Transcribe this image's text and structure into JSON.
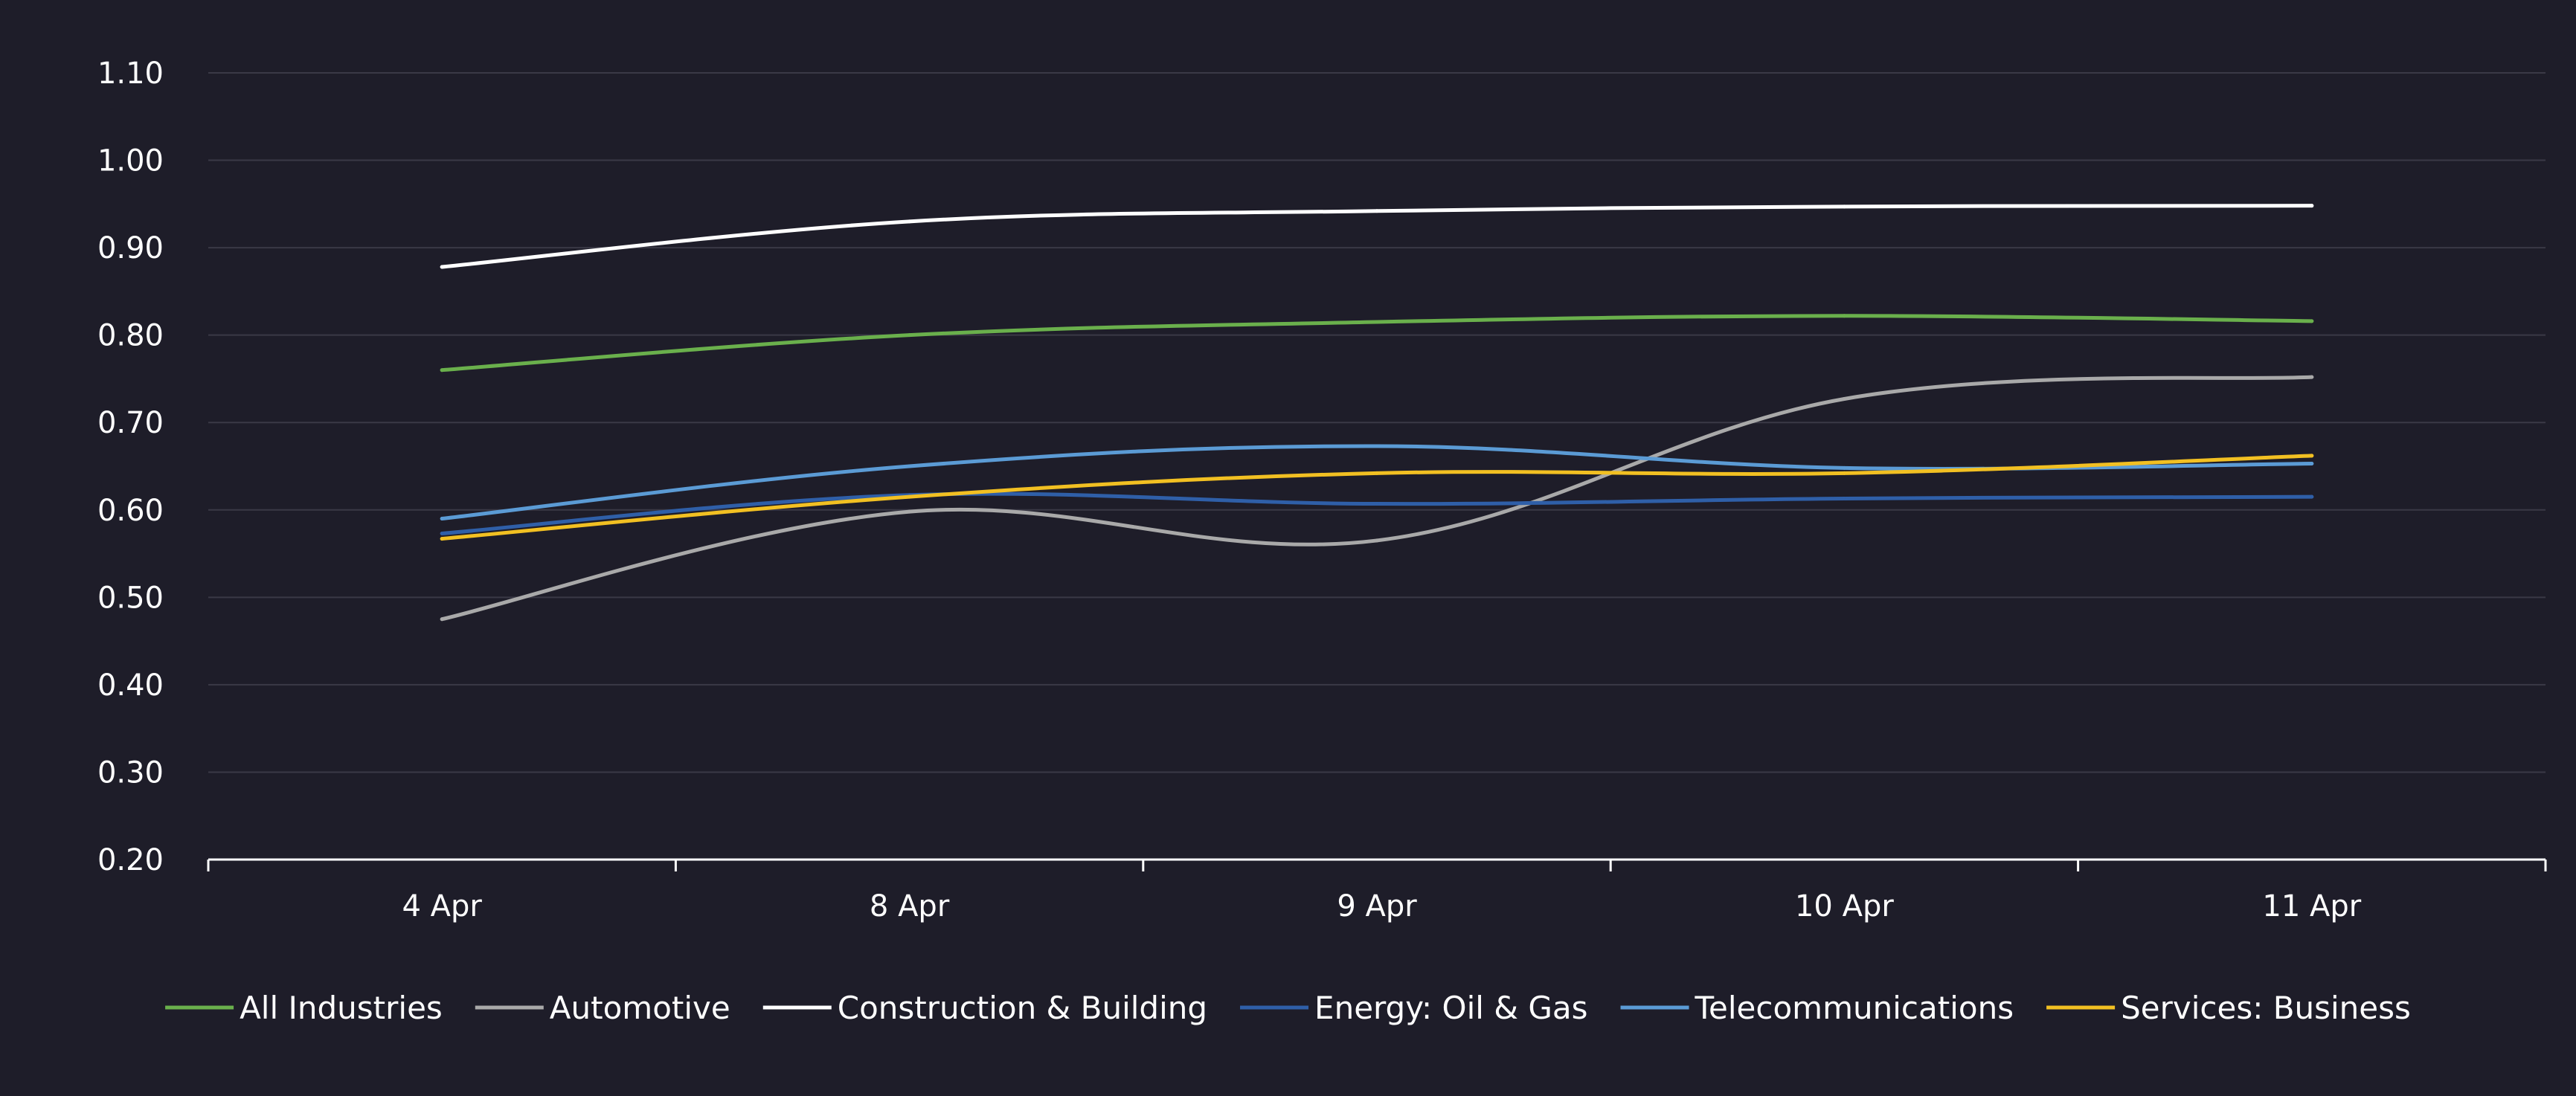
{
  "chart_data": {
    "type": "line",
    "title": "",
    "xlabel": "",
    "ylabel": "",
    "categories": [
      "4 Apr",
      "8 Apr",
      "9 Apr",
      "10 Apr",
      "11 Apr"
    ],
    "ylim": [
      0.2,
      1.1
    ],
    "yticks": [
      "0.20",
      "0.30",
      "0.40",
      "0.50",
      "0.60",
      "0.70",
      "0.80",
      "0.90",
      "1.00",
      "1.10"
    ],
    "grid": true,
    "legend_position": "bottom",
    "series": [
      {
        "name": "All Industries",
        "color": "#6ab04c",
        "values": [
          0.76,
          0.8,
          0.815,
          0.822,
          0.816
        ]
      },
      {
        "name": "Automotive",
        "color": "#a9a9a9",
        "values": [
          0.475,
          0.598,
          0.565,
          0.727,
          0.752
        ]
      },
      {
        "name": "Construction & Building",
        "color": "#ffffff",
        "values": [
          0.878,
          0.93,
          0.942,
          0.947,
          0.948
        ]
      },
      {
        "name": "Energy: Oil & Gas",
        "color": "#2f5fa8",
        "values": [
          0.573,
          0.617,
          0.607,
          0.613,
          0.615
        ]
      },
      {
        "name": "Telecommunications",
        "color": "#5b9bd5",
        "values": [
          0.59,
          0.65,
          0.673,
          0.648,
          0.653
        ]
      },
      {
        "name": "Services: Business",
        "color": "#f2c022",
        "values": [
          0.567,
          0.615,
          0.642,
          0.642,
          0.662
        ]
      }
    ]
  },
  "colors": {
    "background": "#1e1d29",
    "gridline": "#3a3946",
    "axis": "#ffffff",
    "text": "#ffffff"
  }
}
